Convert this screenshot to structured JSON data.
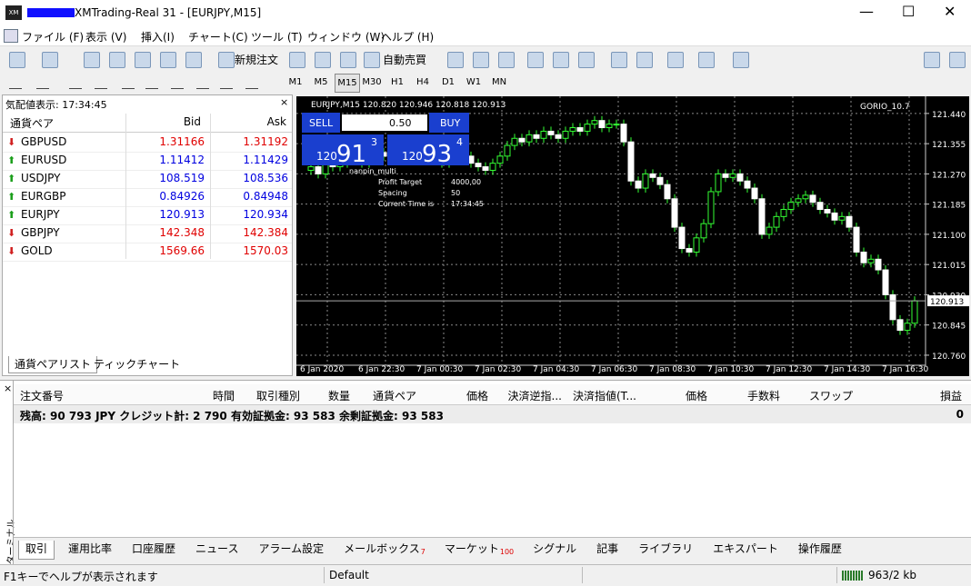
{
  "window": {
    "title": "XMTrading-Real 31 - [EURJPY,M15]"
  },
  "menu": [
    "ファイル (F)",
    "表示 (V)",
    "挿入(I)",
    "チャート(C)",
    "ツール (T)",
    "ウィンドウ (W)",
    "ヘルプ (H)"
  ],
  "toolbar": {
    "new_order": "新規注文",
    "auto_trading": "自動売買",
    "timeframes": [
      "M1",
      "M5",
      "M15",
      "M30",
      "H1",
      "H4",
      "D1",
      "W1",
      "MN"
    ]
  },
  "market_watch": {
    "title": "気配値表示: 17:34:45",
    "columns": [
      "通貨ペア",
      "Bid",
      "Ask"
    ],
    "rows": [
      {
        "symbol": "GBPUSD",
        "bid": 1.31166,
        "ask": 1.31192,
        "color": "#e00000"
      },
      {
        "symbol": "EURUSD",
        "bid": 1.11412,
        "ask": 1.11429,
        "color": "#0000e0"
      },
      {
        "symbol": "USDJPY",
        "bid": 108.519,
        "ask": 108.536,
        "color": "#0000e0"
      },
      {
        "symbol": "EURGBP",
        "bid": 0.84926,
        "ask": 0.84948,
        "color": "#0000e0"
      },
      {
        "symbol": "EURJPY",
        "bid": 120.913,
        "ask": 120.934,
        "color": "#0000e0"
      },
      {
        "symbol": "GBPJPY",
        "bid": 142.348,
        "ask": 142.384,
        "color": "#e00000"
      },
      {
        "symbol": "GOLD",
        "bid": 1569.66,
        "ask": 1570.03,
        "color": "#e00000"
      }
    ],
    "tabs": [
      "通貨ペアリスト",
      "ティックチャート"
    ]
  },
  "chart": {
    "header": "EURJPY,M15  120.820 120.946 120.818 120.913",
    "indicator": "GORIO_10.7",
    "panel": {
      "sell": "SELL",
      "buy": "BUY",
      "lot": "0.50",
      "sell_big": "120",
      "sell_main": "91",
      "sell_sup": "3",
      "buy_big": "120",
      "buy_main": "93",
      "buy_sup": "4"
    },
    "info": [
      [
        "nanpin_multi",
        ""
      ],
      [
        "Profit Target",
        "4000,00"
      ],
      [
        "Spacing",
        "50"
      ],
      [
        "Current Time is",
        "17:34:45"
      ]
    ],
    "ylim": [
      120.742,
      121.478
    ],
    "yticks": [
      {
        "value": 121.44,
        "label": "121.440"
      },
      {
        "value": 121.355,
        "label": "121.355"
      },
      {
        "value": 121.27,
        "label": "121.270"
      },
      {
        "value": 121.185,
        "label": "121.185"
      },
      {
        "value": 121.1,
        "label": "121.100"
      },
      {
        "value": 121.015,
        "label": "121.015"
      },
      {
        "value": 120.93,
        "label": "120.930"
      },
      {
        "value": 120.845,
        "label": "120.845"
      },
      {
        "value": 120.76,
        "label": "120.760"
      }
    ],
    "current": 120.913,
    "time_labels": [
      "6 Jan 2020",
      "6 Jan 22:30",
      "7 Jan 00:30",
      "7 Jan 02:30",
      "7 Jan 04:30",
      "7 Jan 06:30",
      "7 Jan 08:30",
      "7 Jan 10:30",
      "7 Jan 12:30",
      "7 Jan 14:30",
      "7 Jan 16:30"
    ],
    "closes": [
      121.28,
      121.29,
      121.27,
      121.3,
      121.29,
      121.3,
      121.31,
      121.32,
      121.3,
      121.31,
      121.33,
      121.32,
      121.31,
      121.33,
      121.34,
      121.32,
      121.33,
      121.31,
      121.32,
      121.3,
      121.31,
      121.33,
      121.32,
      121.3,
      121.29,
      121.28,
      121.3,
      121.32,
      121.35,
      121.37,
      121.36,
      121.38,
      121.37,
      121.39,
      121.38,
      121.37,
      121.39,
      121.4,
      121.39,
      121.41,
      121.42,
      121.4,
      121.41,
      121.41,
      121.36,
      121.25,
      121.23,
      121.27,
      121.26,
      121.24,
      121.2,
      121.12,
      121.06,
      121.05,
      121.09,
      121.13,
      121.22,
      121.27,
      121.26,
      121.27,
      121.25,
      121.23,
      121.2,
      121.1,
      121.12,
      121.15,
      121.17,
      121.19,
      121.2,
      121.21,
      121.19,
      121.17,
      121.16,
      121.14,
      121.15,
      121.12,
      121.05,
      121.02,
      121.03,
      121.0,
      120.93,
      120.86,
      120.83,
      120.85,
      120.913
    ]
  },
  "terminal": {
    "side": "ターミナル",
    "columns": [
      "注文番号",
      "時間",
      "取引種別",
      "数量",
      "通貨ペア",
      "価格",
      "決済逆指...",
      "決済指値(T...",
      "価格",
      "手数料",
      "スワップ",
      "損益"
    ],
    "balance": "残高: 90 793 JPY  クレジット計: 2 790  有効証拠金: 93 583  余剰証拠金: 93 583",
    "profit": "0",
    "tabs": [
      {
        "label": "取引"
      },
      {
        "label": "運用比率"
      },
      {
        "label": "口座履歴"
      },
      {
        "label": "ニュース"
      },
      {
        "label": "アラーム設定"
      },
      {
        "label": "メールボックス",
        "badge": "7"
      },
      {
        "label": "マーケット",
        "badge": "100"
      },
      {
        "label": "シグナル"
      },
      {
        "label": "記事"
      },
      {
        "label": "ライブラリ"
      },
      {
        "label": "エキスパート"
      },
      {
        "label": "操作履歴"
      }
    ]
  },
  "status": {
    "help": "F1キーでヘルプが表示されます",
    "profile": "Default",
    "traffic": "963/2 kb"
  }
}
